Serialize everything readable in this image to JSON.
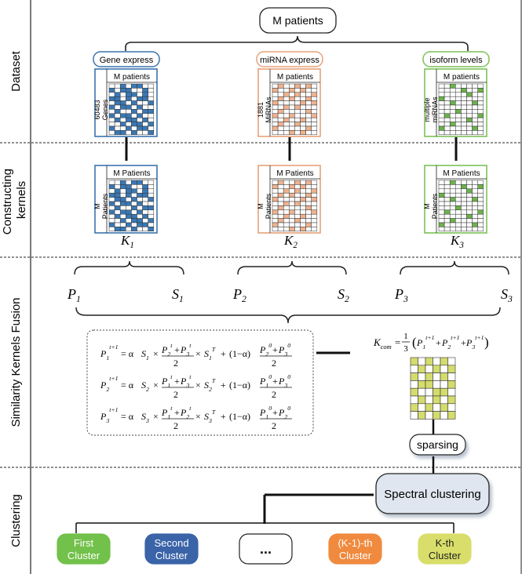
{
  "sections": {
    "dataset": "Dataset",
    "constructing": "Constructing kernels",
    "fusion": "Similarity Kernels Fusion",
    "clustering": "Clustering"
  },
  "top_node": "M patients",
  "datasets": [
    {
      "tag": "Gene express",
      "color": "#3a78b5",
      "border": "#3b74ae",
      "col_label": "M patients",
      "row_label": "60483 Genes",
      "kernel_col": "M Patients",
      "kernel_row": "M Patients",
      "kernel_label": "K1",
      "pattern": [
        "00101100",
        "10110010",
        "01011010",
        "11010110",
        "01101001",
        "10110100",
        "01001011",
        "10110100",
        "01011010",
        "00101101",
        "10010110",
        "01101001"
      ]
    },
    {
      "tag": "miRNA express",
      "color": "#f0b28e",
      "border": "#e8a27a",
      "col_label": "M patients",
      "row_label": "1881 MiRNAs",
      "kernel_col": "M Patients",
      "kernel_row": "M Patients",
      "kernel_label": "K2",
      "pattern": [
        "01001010",
        "10010100",
        "00101001",
        "01010010",
        "10000101",
        "00101000",
        "01000010",
        "10010001",
        "00100100",
        "01001000",
        "10000010",
        "00010100"
      ]
    },
    {
      "tag": "isoform levels",
      "color": "#6bb24a",
      "border": "#7cc258",
      "col_label": "M patients",
      "row_label": "multiple miRNAs",
      "kernel_col": "M Patients",
      "kernel_row": "M Patients",
      "kernel_label": "K3",
      "pattern": [
        "00100000",
        "00001001",
        "00000100",
        "10000000",
        "00100010",
        "00000000",
        "00010000",
        "01000001",
        "00000100",
        "00100000",
        "10000010",
        "00000000"
      ]
    }
  ],
  "pairs": [
    {
      "p": "P1",
      "s": "S1"
    },
    {
      "p": "P2",
      "s": "S2"
    },
    {
      "p": "P3",
      "s": "S3"
    }
  ],
  "equations": [
    "P1(t+1) = α S1 × (P2(t)+P3(t))/2 × S1(T) + (1−α) (P2(0)+P3(0))/2",
    "P2(t+1) = α S2 × (P1(t)+P3(t))/2 × S2(T) + (1−α) (P1(0)+P3(0))/2",
    "P3(t+1) = α S3 × (P1(t)+P2(t))/2 × S3(T) + (1−α) (P1(0)+P2(0))/2"
  ],
  "kcom_formula": "Kcom = 1/3 (P1(t+1)+P2(t+1)+P3(t+1))",
  "kcom_color": "#d4dc6c",
  "kcom_pattern": [
    "101010",
    "010101",
    "101010",
    "011001",
    "100110",
    "010101",
    "101010",
    "010101"
  ],
  "sparsing": "sparsing",
  "spectral": "Spectral clustering",
  "clusters": [
    {
      "l1": "First",
      "l2": "Cluster",
      "color": "#72c14a"
    },
    {
      "l1": "Second",
      "l2": "Cluster",
      "color": "#3a63a8"
    },
    {
      "l1": "...",
      "l2": "",
      "color": "#ffffff"
    },
    {
      "l1": "(K-1)-th",
      "l2": "Cluster",
      "color": "#f08a3e"
    },
    {
      "l1": "K-th",
      "l2": "Cluster",
      "color": "#d9de6a"
    }
  ]
}
